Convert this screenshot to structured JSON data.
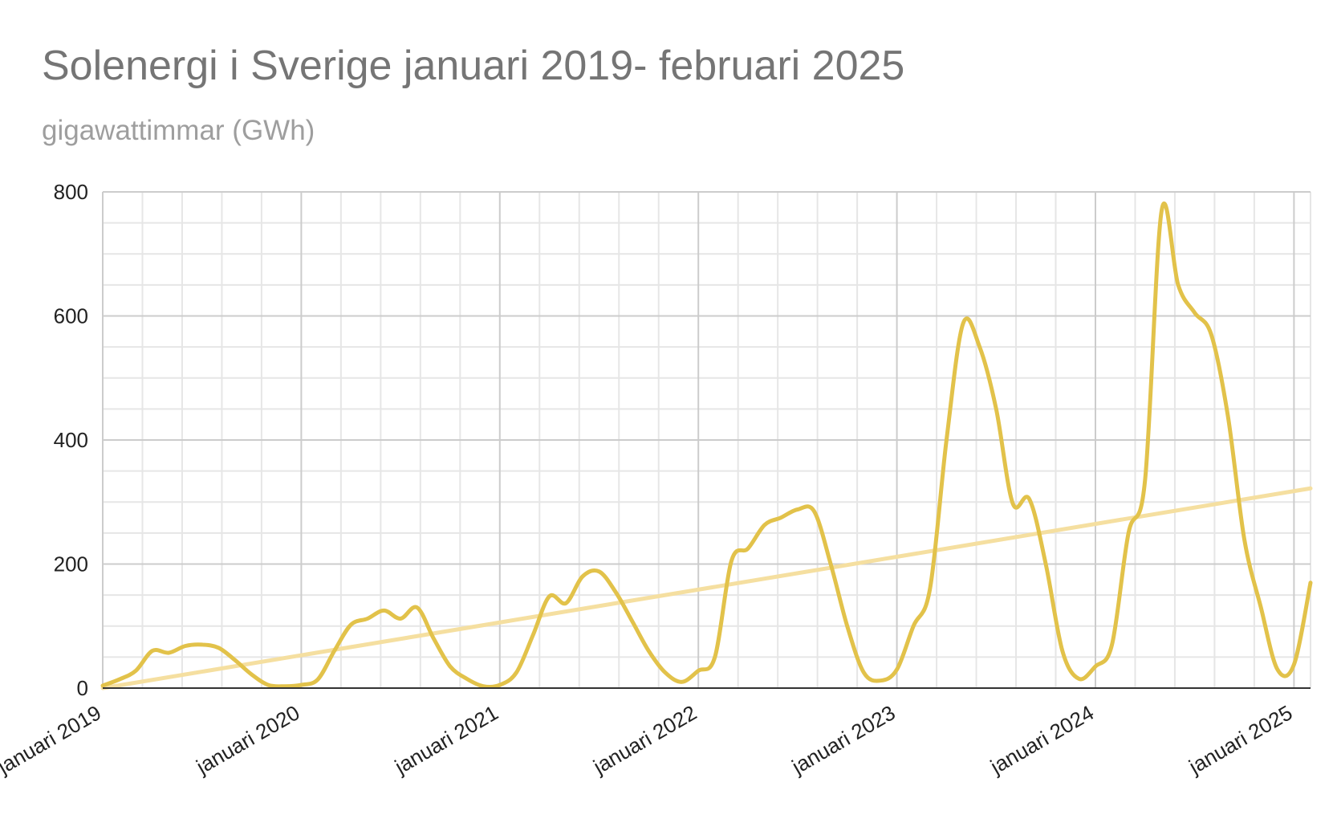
{
  "colors": {
    "series": "#e2c24a",
    "trend": "#f5dfa0",
    "grid_major": "#cccccc",
    "grid_minor": "#e6e6e6",
    "baseline": "#333333"
  },
  "chart_data": {
    "type": "line",
    "title": "Solenergi i Sverige januari 2019- februari 2025",
    "subtitle": "gigawattimmar (GWh)",
    "xlabel": "",
    "ylabel": "",
    "ylim": [
      0,
      800
    ],
    "yticks": [
      0,
      200,
      400,
      600,
      800
    ],
    "grid": true,
    "smooth": true,
    "x_start": "2019-01",
    "x_end": "2025-02",
    "x_tick_labels": [
      "januari 2019",
      "januari 2020",
      "januari 2021",
      "januari 2022",
      "januari 2023",
      "januari 2024",
      "januari 2025"
    ],
    "x": [
      "2019-01",
      "2019-02",
      "2019-03",
      "2019-04",
      "2019-05",
      "2019-06",
      "2019-07",
      "2019-08",
      "2019-09",
      "2019-10",
      "2019-11",
      "2019-12",
      "2020-01",
      "2020-02",
      "2020-03",
      "2020-04",
      "2020-05",
      "2020-06",
      "2020-07",
      "2020-08",
      "2020-09",
      "2020-10",
      "2020-11",
      "2020-12",
      "2021-01",
      "2021-02",
      "2021-03",
      "2021-04",
      "2021-05",
      "2021-06",
      "2021-07",
      "2021-08",
      "2021-09",
      "2021-10",
      "2021-11",
      "2021-12",
      "2022-01",
      "2022-02",
      "2022-03",
      "2022-04",
      "2022-05",
      "2022-06",
      "2022-07",
      "2022-08",
      "2022-09",
      "2022-10",
      "2022-11",
      "2022-12",
      "2023-01",
      "2023-02",
      "2023-03",
      "2023-04",
      "2023-05",
      "2023-06",
      "2023-07",
      "2023-08",
      "2023-09",
      "2023-10",
      "2023-11",
      "2023-12",
      "2024-01",
      "2024-02",
      "2024-03",
      "2024-04",
      "2024-05",
      "2024-06",
      "2024-07",
      "2024-08",
      "2024-09",
      "2024-10",
      "2024-11",
      "2024-12",
      "2025-01",
      "2025-02"
    ],
    "series": [
      {
        "values": [
          4,
          14,
          28,
          60,
          57,
          68,
          70,
          65,
          45,
          22,
          5,
          3,
          5,
          14,
          60,
          102,
          112,
          125,
          112,
          130,
          80,
          35,
          15,
          3,
          5,
          25,
          85,
          148,
          137,
          180,
          188,
          155,
          108,
          60,
          25,
          10,
          28,
          50,
          205,
          225,
          263,
          275,
          288,
          285,
          200,
          100,
          25,
          12,
          30,
          100,
          160,
          400,
          588,
          550,
          450,
          298,
          305,
          200,
          60,
          15,
          35,
          70,
          250,
          335,
          770,
          650,
          605,
          570,
          440,
          240,
          130,
          30,
          38,
          170
        ]
      },
      {
        "values": [
          0,
          322
        ],
        "x": [
          "2019-01",
          "2025-02"
        ]
      }
    ]
  }
}
